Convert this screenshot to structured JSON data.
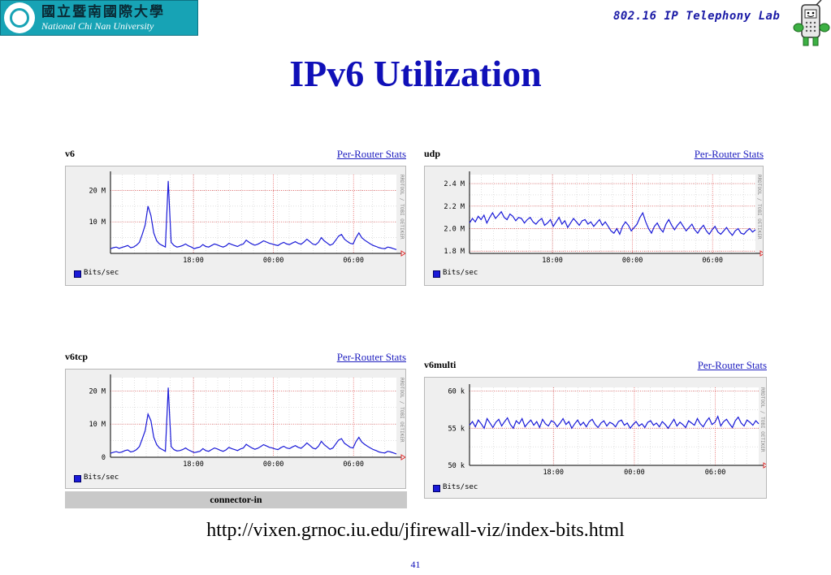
{
  "header": {
    "logo_zh": "國立暨南國際大學",
    "logo_en": "National Chi Nan University",
    "lab": "802.16 IP Telephony Lab"
  },
  "title": "IPv6 Utilization",
  "link_label": "Per-Router Stats",
  "legend_label": "Bits/sec",
  "side_label": "RRDTOOL / TOBI OETIKER",
  "connector_label": "connector-in",
  "url": "http://vixen.grnoc.iu.edu/jfirewall-viz/index-bits.html",
  "page_number": "41",
  "colors": {
    "title": "#1010b8",
    "series": "#1a1ad8",
    "grid_major": "#e04040",
    "grid_minor": "#cccccc"
  },
  "chart_data": [
    {
      "id": "v6",
      "type": "line",
      "title": "v6",
      "ylabel": "",
      "yticks": [
        {
          "v": 10000000,
          "label": "10 M"
        },
        {
          "v": 20000000,
          "label": "20 M"
        }
      ],
      "xticks": [
        {
          "t": 0.29,
          "label": "18:00"
        },
        {
          "t": 0.57,
          "label": "00:00"
        },
        {
          "t": 0.85,
          "label": "06:00"
        }
      ],
      "ylim": [
        0,
        25000000
      ],
      "series": [
        {
          "values": [
            1.5,
            1.8,
            2.0,
            1.6,
            1.9,
            2.2,
            2.5,
            1.8,
            2.0,
            2.6,
            3.5,
            6.0,
            9.0,
            15.0,
            12.0,
            6.5,
            4.0,
            3.0,
            2.5,
            2.0,
            23.0,
            3.5,
            2.5,
            2.0,
            2.2,
            2.5,
            3.0,
            2.4,
            2.0,
            1.5,
            1.8,
            2.0,
            2.8,
            2.2,
            2.0,
            2.5,
            3.0,
            2.7,
            2.3,
            2.0,
            2.4,
            3.2,
            2.8,
            2.5,
            2.2,
            2.7,
            3.0,
            4.2,
            3.5,
            3.0,
            2.6,
            2.9,
            3.4,
            4.0,
            3.6,
            3.2,
            3.0,
            2.7,
            2.5,
            3.1,
            3.5,
            3.0,
            2.8,
            3.3,
            3.7,
            3.2,
            2.9,
            3.6,
            4.5,
            3.8,
            3.0,
            2.7,
            3.5,
            5.0,
            4.0,
            3.3,
            2.6,
            3.0,
            4.2,
            5.5,
            6.0,
            4.5,
            3.8,
            3.2,
            3.0,
            5.0,
            6.5,
            5.0,
            4.2,
            3.6,
            3.0,
            2.5,
            2.2,
            1.8,
            1.6,
            1.5,
            2.0,
            1.8,
            1.5,
            1.2
          ]
        }
      ]
    },
    {
      "id": "udp",
      "type": "line",
      "title": "udp",
      "ylabel": "",
      "yticks": [
        {
          "v": 1800000,
          "label": "1.8 M"
        },
        {
          "v": 2000000,
          "label": "2.0 M"
        },
        {
          "v": 2200000,
          "label": "2.2 M"
        },
        {
          "v": 2400000,
          "label": "2.4 M"
        }
      ],
      "xticks": [
        {
          "t": 0.29,
          "label": "18:00"
        },
        {
          "t": 0.57,
          "label": "00:00"
        },
        {
          "t": 0.85,
          "label": "06:00"
        }
      ],
      "ylim": [
        1780000,
        2480000
      ],
      "series": [
        {
          "values": [
            2.05,
            2.09,
            2.06,
            2.11,
            2.08,
            2.12,
            2.05,
            2.1,
            2.14,
            2.09,
            2.12,
            2.15,
            2.1,
            2.08,
            2.13,
            2.11,
            2.07,
            2.1,
            2.09,
            2.05,
            2.08,
            2.1,
            2.06,
            2.04,
            2.07,
            2.09,
            2.03,
            2.05,
            2.08,
            2.02,
            2.06,
            2.1,
            2.04,
            2.07,
            2.01,
            2.05,
            2.09,
            2.06,
            2.03,
            2.07,
            2.08,
            2.04,
            2.06,
            2.02,
            2.05,
            2.08,
            2.03,
            2.06,
            2.02,
            1.98,
            1.96,
            2.0,
            1.95,
            2.02,
            2.06,
            2.03,
            1.98,
            2.01,
            2.04,
            2.1,
            2.14,
            2.06,
            2.0,
            1.96,
            2.02,
            2.05,
            2.0,
            1.97,
            2.04,
            2.08,
            2.03,
            1.99,
            2.03,
            2.06,
            2.02,
            1.98,
            2.01,
            2.04,
            1.99,
            1.96,
            2.0,
            2.03,
            1.98,
            1.95,
            1.99,
            2.02,
            1.97,
            1.95,
            1.98,
            2.01,
            1.97,
            1.94,
            1.98,
            2.0,
            1.96,
            1.95,
            1.98,
            2.0,
            1.97,
            1.99
          ]
        }
      ]
    },
    {
      "id": "v6tcp",
      "type": "line",
      "title": "v6tcp",
      "ylabel": "",
      "yticks": [
        {
          "v": 0,
          "label": "0"
        },
        {
          "v": 10000000,
          "label": "10 M"
        },
        {
          "v": 20000000,
          "label": "20 M"
        }
      ],
      "xticks": [
        {
          "t": 0.29,
          "label": "18:00"
        },
        {
          "t": 0.57,
          "label": "00:00"
        },
        {
          "t": 0.85,
          "label": "06:00"
        }
      ],
      "ylim": [
        0,
        24000000
      ],
      "series": [
        {
          "values": [
            1.2,
            1.5,
            1.7,
            1.4,
            1.6,
            2.0,
            2.2,
            1.6,
            1.8,
            2.3,
            3.2,
            5.5,
            8.0,
            13.0,
            11.0,
            6.0,
            3.8,
            2.8,
            2.3,
            1.8,
            21.0,
            3.2,
            2.3,
            1.9,
            2.0,
            2.3,
            2.8,
            2.2,
            1.8,
            1.4,
            1.6,
            1.8,
            2.6,
            2.0,
            1.8,
            2.3,
            2.8,
            2.5,
            2.1,
            1.8,
            2.2,
            3.0,
            2.6,
            2.3,
            2.0,
            2.5,
            2.8,
            3.9,
            3.3,
            2.8,
            2.4,
            2.7,
            3.2,
            3.8,
            3.4,
            3.0,
            2.8,
            2.5,
            2.3,
            2.9,
            3.3,
            2.8,
            2.6,
            3.1,
            3.5,
            3.0,
            2.7,
            3.4,
            4.3,
            3.6,
            2.8,
            2.5,
            3.3,
            4.8,
            3.8,
            3.1,
            2.4,
            2.8,
            4.0,
            5.2,
            5.6,
            4.2,
            3.6,
            3.0,
            2.8,
            4.7,
            6.0,
            4.6,
            3.9,
            3.3,
            2.8,
            2.3,
            2.0,
            1.6,
            1.4,
            1.3,
            1.8,
            1.6,
            1.3,
            1.0
          ]
        }
      ]
    },
    {
      "id": "v6multi",
      "type": "line",
      "title": "v6multi",
      "ylabel": "",
      "yticks": [
        {
          "v": 50000,
          "label": "50 k"
        },
        {
          "v": 55000,
          "label": "55 k"
        },
        {
          "v": 60000,
          "label": "60 k"
        }
      ],
      "xticks": [
        {
          "t": 0.29,
          "label": "18:00"
        },
        {
          "t": 0.57,
          "label": "00:00"
        },
        {
          "t": 0.85,
          "label": "06:00"
        }
      ],
      "ylim": [
        50000,
        60500
      ],
      "series": [
        {
          "values": [
            55.4,
            55.9,
            55.2,
            56.1,
            55.6,
            55.0,
            56.3,
            55.7,
            55.1,
            55.8,
            56.2,
            55.3,
            55.9,
            56.4,
            55.5,
            55.0,
            56.0,
            55.6,
            56.3,
            55.2,
            55.7,
            56.1,
            55.4,
            55.9,
            55.1,
            56.2,
            55.6,
            55.3,
            56.0,
            55.8,
            55.2,
            55.7,
            56.3,
            55.5,
            55.9,
            55.0,
            55.6,
            56.1,
            55.4,
            55.8,
            55.2,
            55.9,
            56.2,
            55.5,
            55.1,
            55.7,
            56.0,
            55.3,
            55.8,
            55.6,
            55.2,
            55.9,
            56.1,
            55.4,
            55.7,
            55.0,
            55.5,
            55.9,
            55.3,
            55.6,
            55.1,
            55.8,
            56.0,
            55.4,
            55.7,
            55.2,
            55.9,
            55.5,
            55.0,
            55.6,
            56.2,
            55.3,
            55.8,
            55.5,
            55.1,
            56.0,
            55.7,
            55.4,
            56.3,
            55.6,
            55.2,
            55.9,
            56.4,
            55.5,
            55.8,
            56.6,
            55.3,
            55.9,
            56.2,
            55.6,
            55.1,
            56.0,
            56.5,
            55.7,
            55.3,
            56.1,
            55.8,
            55.4,
            56.0,
            55.6
          ]
        }
      ]
    }
  ]
}
